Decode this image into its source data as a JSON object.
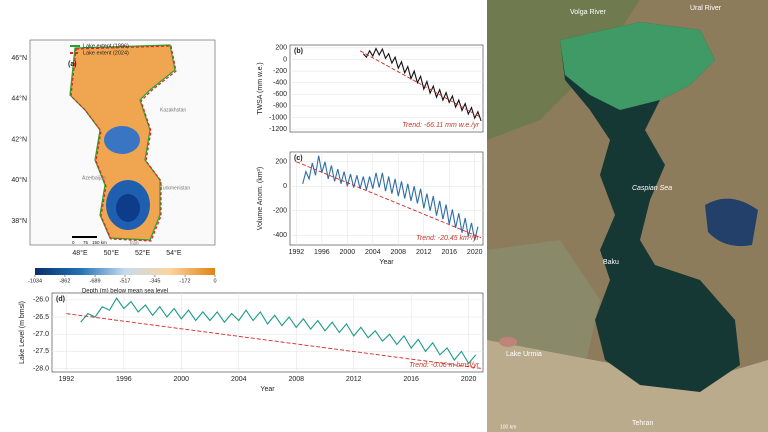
{
  "chart_data": [
    {
      "type": "map",
      "title": "(a)",
      "legend": [
        {
          "name": "Lake extent (1996)",
          "color": "#2ca02c",
          "style": "solid"
        },
        {
          "name": "Lake extent (2024)",
          "color": "#d62728",
          "style": "dashed"
        }
      ],
      "lat_labels": [
        "46°N",
        "44°N",
        "42°N",
        "40°N",
        "38°N"
      ],
      "lon_labels": [
        "48°E",
        "50°E",
        "52°E",
        "54°E"
      ],
      "places": [
        "Kazakhstan",
        "Azerbaijan",
        "Turkmenistan",
        "Iran"
      ],
      "scalebar": [
        "0",
        "75",
        "150 km"
      ],
      "colorbar": {
        "label": "Depth (m) below mean sea level",
        "clim": [
          -1034,
          0
        ],
        "ticks": [
          -1034,
          -862,
          -689,
          -517,
          -345,
          -172,
          0
        ],
        "colors": [
          "#08306b",
          "#2171b5",
          "#c6dbef",
          "#fdd49e",
          "#e08214"
        ]
      }
    },
    {
      "type": "line",
      "title": "(b)",
      "ylabel": "TWSA (mm w.e.)",
      "trend_label": "Trend: -66.11 mm w.e./yr",
      "xlim": [
        1991,
        2021.3
      ],
      "ylim": [
        -1250,
        250
      ],
      "yticks": [
        200,
        0,
        -200,
        -400,
        -600,
        -800,
        -1000,
        -1200
      ],
      "grid": true,
      "series": [
        {
          "color": "#111111",
          "style": "solid",
          "x": [
            2002.5,
            2003,
            2003.5,
            2004,
            2004.5,
            2005,
            2005.5,
            2006,
            2006.5,
            2007,
            2007.5,
            2008,
            2008.5,
            2009,
            2009.5,
            2010,
            2010.5,
            2011,
            2011.5,
            2012,
            2012.5,
            2013,
            2013.5,
            2014,
            2014.5,
            2015,
            2015.5,
            2016,
            2016.5,
            2017,
            2017.5,
            2018,
            2018.5,
            2019,
            2019.5,
            2020,
            2020.5,
            2021
          ],
          "values": [
            100,
            40,
            150,
            60,
            190,
            80,
            180,
            20,
            100,
            -60,
            40,
            -150,
            -40,
            -230,
            -120,
            -330,
            -200,
            -400,
            -290,
            -510,
            -380,
            -580,
            -460,
            -650,
            -520,
            -700,
            -570,
            -740,
            -630,
            -820,
            -700,
            -880,
            -760,
            -940,
            -830,
            -1010,
            -900,
            -1060
          ]
        },
        {
          "color": "#d62728",
          "style": "dashed",
          "x": [
            2002,
            2021
          ],
          "values": [
            150,
            -1000
          ]
        }
      ]
    },
    {
      "type": "line",
      "title": "(c)",
      "ylabel": "Volume Anom. (km³)",
      "xlabel": "Year",
      "trend_label": "Trend: -20.45 km³/yr",
      "xlim": [
        1991,
        2021.3
      ],
      "ylim": [
        -480,
        280
      ],
      "xticks": [
        1992,
        1996,
        2000,
        2004,
        2008,
        2012,
        2016,
        2020
      ],
      "yticks": [
        200,
        0,
        -200,
        -400
      ],
      "grid": true,
      "series": [
        {
          "color": "#2f6ea5",
          "style": "solid",
          "x": [
            1993,
            1993.5,
            1994,
            1994.5,
            1995,
            1995.5,
            1996,
            1996.5,
            1997,
            1997.5,
            1998,
            1998.5,
            1999,
            1999.5,
            2000,
            2000.5,
            2001,
            2001.5,
            2002,
            2002.5,
            2003,
            2003.5,
            2004,
            2004.5,
            2005,
            2005.5,
            2006,
            2006.5,
            2007,
            2007.5,
            2008,
            2008.5,
            2009,
            2009.5,
            2010,
            2010.5,
            2011,
            2011.5,
            2012,
            2012.5,
            2013,
            2013.5,
            2014,
            2014.5,
            2015,
            2015.5,
            2016,
            2016.5,
            2017,
            2017.5,
            2018,
            2018.5,
            2019,
            2019.5,
            2020,
            2020.5
          ],
          "values": [
            20,
            120,
            60,
            190,
            90,
            250,
            110,
            200,
            60,
            170,
            40,
            140,
            20,
            120,
            0,
            100,
            -10,
            90,
            -20,
            80,
            -30,
            80,
            -20,
            110,
            -10,
            110,
            -40,
            80,
            -60,
            60,
            -80,
            40,
            -100,
            20,
            -120,
            0,
            -140,
            -20,
            -180,
            -60,
            -200,
            -80,
            -240,
            -120,
            -270,
            -150,
            -310,
            -190,
            -340,
            -220,
            -380,
            -260,
            -410,
            -300,
            -440,
            -330
          ]
        },
        {
          "color": "#d62728",
          "style": "dashed",
          "x": [
            1992,
            2021
          ],
          "values": [
            200,
            -420
          ]
        }
      ]
    },
    {
      "type": "line",
      "title": "(d)",
      "ylabel": "Lake Level (m bmsl)",
      "xlabel": "Year",
      "trend_label": "Trend: -0.06 m bmsl/yr",
      "xlim": [
        1991,
        2021
      ],
      "ylim": [
        -28.1,
        -25.8
      ],
      "xticks": [
        1992,
        1996,
        2000,
        2004,
        2008,
        2012,
        2016,
        2020
      ],
      "yticks": [
        {
          "value": -26,
          "label": "-26.0"
        },
        -26.5,
        {
          "value": -27,
          "label": "-27.0"
        },
        -27.5,
        {
          "value": -28,
          "label": "-28.0"
        }
      ],
      "grid": true,
      "series": [
        {
          "color": "#1a9a8a",
          "style": "solid",
          "x": [
            1993,
            1993.5,
            1994,
            1994.5,
            1995,
            1995.5,
            1996,
            1996.5,
            1997,
            1997.5,
            1998,
            1998.5,
            1999,
            1999.5,
            2000,
            2000.5,
            2001,
            2001.5,
            2002,
            2002.5,
            2003,
            2003.5,
            2004,
            2004.5,
            2005,
            2005.5,
            2006,
            2006.5,
            2007,
            2007.5,
            2008,
            2008.5,
            2009,
            2009.5,
            2010,
            2010.5,
            2011,
            2011.5,
            2012,
            2012.5,
            2013,
            2013.5,
            2014,
            2014.5,
            2015,
            2015.5,
            2016,
            2016.5,
            2017,
            2017.5,
            2018,
            2018.5,
            2019,
            2019.5,
            2020,
            2020.5
          ],
          "values": [
            -26.65,
            -26.4,
            -26.5,
            -26.2,
            -26.3,
            -25.95,
            -26.25,
            -26.05,
            -26.35,
            -26.15,
            -26.45,
            -26.2,
            -26.5,
            -26.25,
            -26.55,
            -26.3,
            -26.6,
            -26.35,
            -26.6,
            -26.35,
            -26.65,
            -26.4,
            -26.6,
            -26.3,
            -26.6,
            -26.35,
            -26.7,
            -26.45,
            -26.75,
            -26.5,
            -26.8,
            -26.55,
            -26.85,
            -26.6,
            -26.9,
            -26.65,
            -26.95,
            -26.7,
            -27.05,
            -26.8,
            -27.1,
            -26.9,
            -27.2,
            -27.0,
            -27.3,
            -27.05,
            -27.4,
            -27.15,
            -27.5,
            -27.25,
            -27.6,
            -27.4,
            -27.75,
            -27.5,
            -27.85,
            -27.6
          ]
        },
        {
          "color": "#d62728",
          "style": "dashed",
          "x": [
            1992,
            2021
          ],
          "values": [
            -26.4,
            -28.0
          ]
        }
      ]
    }
  ],
  "satellite": {
    "labels": [
      "Volga River",
      "Ural River",
      "Caspian Sea",
      "Baku",
      "Lake Urmia",
      "Tehran",
      "100 km"
    ]
  }
}
